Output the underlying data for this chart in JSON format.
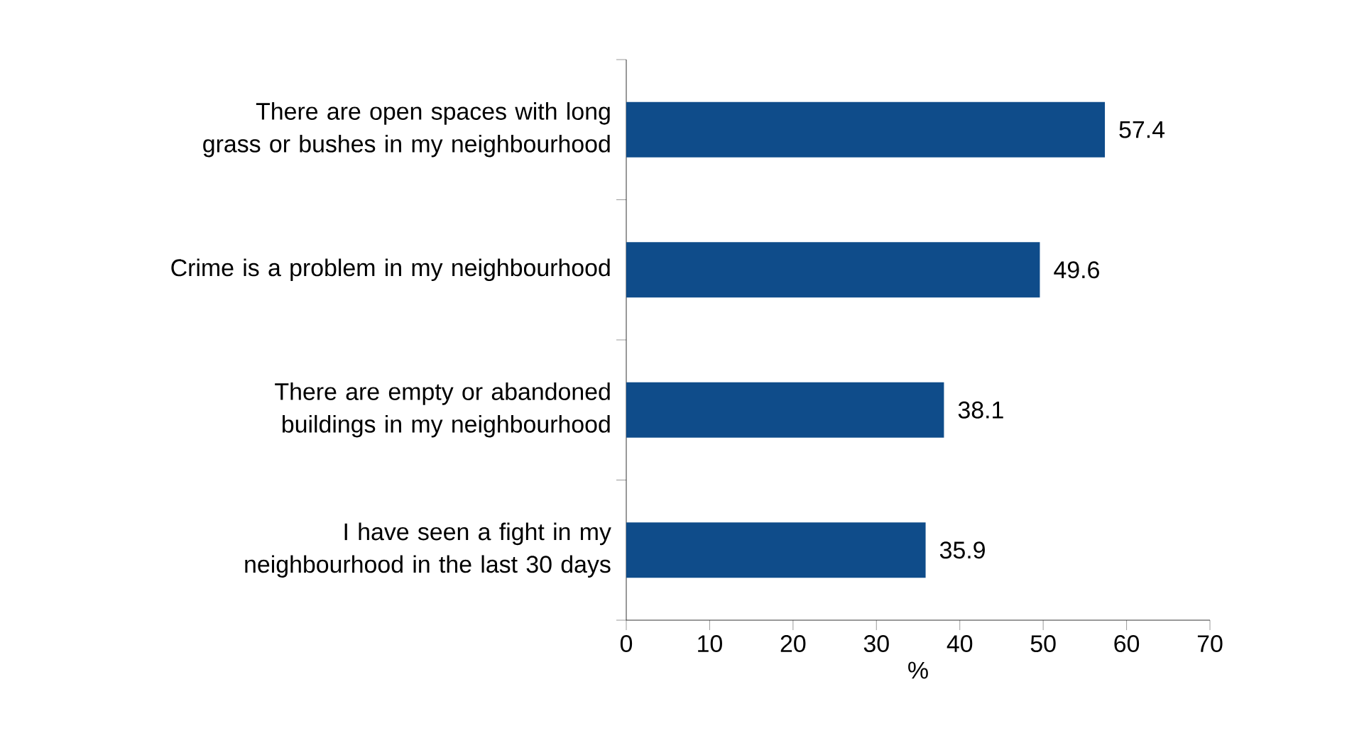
{
  "chart_data": {
    "type": "bar",
    "orientation": "horizontal",
    "xlabel": "%",
    "categories": [
      "There are open spaces with long grass or bushes in my neighbourhood",
      "Crime is a problem in my neighbourhood",
      "There are empty or abandoned buildings in my neighbourhood",
      "I have seen a fight in my neighbourhood in the last 30 days"
    ],
    "values": [
      57.4,
      49.6,
      38.1,
      35.9
    ],
    "color": "#0f4c8a",
    "data_labels": true,
    "grid": false,
    "xlim": [
      0,
      70
    ],
    "xticks": [
      0,
      10,
      20,
      30,
      40,
      50,
      60,
      70
    ]
  }
}
